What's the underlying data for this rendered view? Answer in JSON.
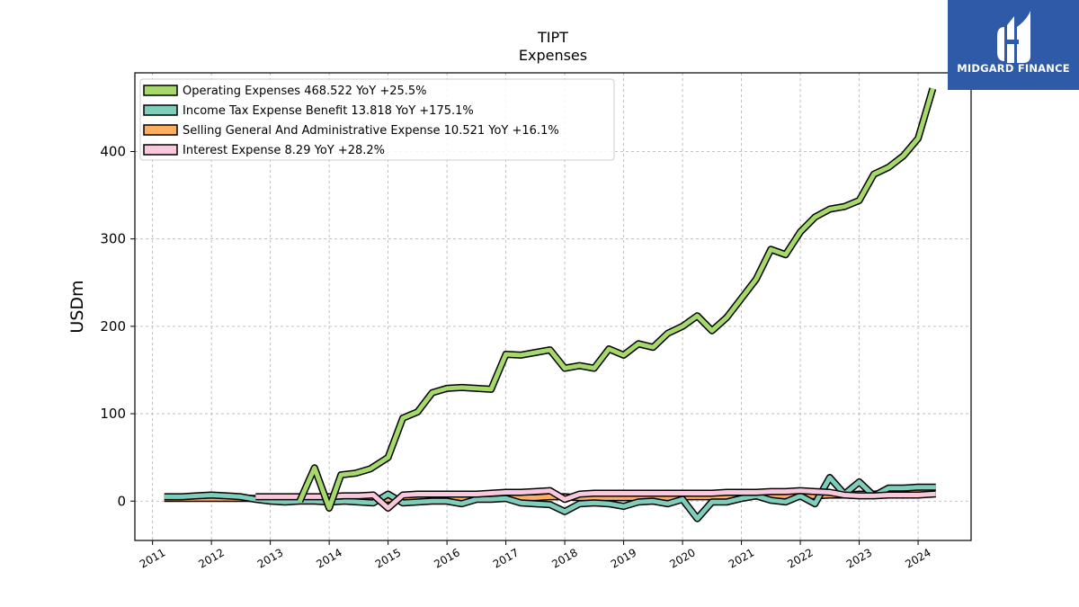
{
  "chart_data": {
    "type": "line",
    "title": "TIPT",
    "subtitle": "Expenses",
    "ylabel": "USDm",
    "xlabel": "",
    "xlim": [
      2010.7,
      2024.9
    ],
    "ylim": [
      -45,
      490
    ],
    "grid": true,
    "legend_placement": "top-left",
    "x_ticks": [
      "2011",
      "2012",
      "2013",
      "2014",
      "2015",
      "2016",
      "2017",
      "2018",
      "2019",
      "2020",
      "2021",
      "2022",
      "2023",
      "2024"
    ],
    "y_ticks": [
      0,
      100,
      200,
      300,
      400
    ],
    "series": [
      {
        "name": "Operating Expenses",
        "legend": "Operating Expenses  468.522 YoY +25.5%",
        "color": "#a6d96a",
        "x": [
          2013.5,
          2013.75,
          2014.0,
          2014.2,
          2014.45,
          2014.7,
          2015.0,
          2015.25,
          2015.5,
          2015.75,
          2016.0,
          2016.25,
          2016.5,
          2016.75,
          2017.0,
          2017.25,
          2017.5,
          2017.75,
          2018.0,
          2018.25,
          2018.5,
          2018.75,
          2019.0,
          2019.25,
          2019.5,
          2019.75,
          2020.0,
          2020.25,
          2020.5,
          2020.75,
          2021.0,
          2021.25,
          2021.5,
          2021.75,
          2022.0,
          2022.25,
          2022.5,
          2022.75,
          2023.0,
          2023.25,
          2023.5,
          2023.75,
          2024.0,
          2024.25
        ],
        "values": [
          0,
          38,
          -8,
          30,
          32,
          37,
          50,
          95,
          102,
          124,
          129,
          130,
          129,
          128,
          168,
          167,
          170,
          173,
          152,
          155,
          152,
          174,
          167,
          180,
          176,
          192,
          200,
          212,
          195,
          210,
          232,
          254,
          288,
          282,
          308,
          325,
          334,
          337,
          344,
          374,
          382,
          395,
          415,
          472
        ]
      },
      {
        "name": "Income Tax Expense Benefit",
        "legend": "Income Tax Expense Benefit  13.818 YoY +175.1%",
        "color": "#7fcdbb",
        "x": [
          2011.2,
          2011.5,
          2011.75,
          2012.0,
          2012.25,
          2012.5,
          2012.75,
          2013.0,
          2013.25,
          2013.5,
          2013.75,
          2014.0,
          2014.25,
          2014.5,
          2014.75,
          2015.0,
          2015.25,
          2015.5,
          2015.75,
          2016.0,
          2016.25,
          2016.5,
          2016.75,
          2017.0,
          2017.25,
          2017.5,
          2017.75,
          2018.0,
          2018.25,
          2018.5,
          2018.75,
          2019.0,
          2019.25,
          2019.5,
          2019.75,
          2020.0,
          2020.25,
          2020.5,
          2020.75,
          2021.0,
          2021.25,
          2021.5,
          2021.75,
          2022.0,
          2022.25,
          2022.5,
          2022.75,
          2023.0,
          2023.25,
          2023.5,
          2023.75,
          2024.0,
          2024.3
        ],
        "values": [
          5,
          5,
          6,
          7,
          6,
          5,
          2,
          0,
          -1,
          0,
          0,
          -1,
          0,
          -1,
          -2,
          8,
          -2,
          -1,
          0,
          0,
          -3,
          2,
          2,
          3,
          -2,
          -3,
          -4,
          -12,
          -3,
          -2,
          -3,
          -6,
          -1,
          0,
          -3,
          2,
          -20,
          -1,
          -1,
          3,
          6,
          1,
          -1,
          6,
          -3,
          27,
          8,
          22,
          6,
          15,
          15,
          16,
          16
        ]
      },
      {
        "name": "Selling General And Administrative Expense",
        "legend": "Selling General And Administrative Expense  10.521 YoY +16.1%",
        "color": "#fdae61",
        "x": [
          2011.2,
          2011.5,
          2011.75,
          2012.0,
          2012.25,
          2012.5,
          2012.75,
          2013.0,
          2013.25,
          2013.5,
          2013.75,
          2014.0,
          2014.25,
          2014.5,
          2014.75,
          2015.0,
          2015.25,
          2015.5,
          2015.75,
          2016.0,
          2016.25,
          2016.5,
          2016.75,
          2017.0,
          2017.25,
          2017.5,
          2017.75,
          2018.0,
          2018.25,
          2018.5,
          2018.75,
          2019.0,
          2019.25,
          2019.5,
          2019.75,
          2020.0,
          2020.25,
          2020.5,
          2020.75,
          2021.0,
          2021.25,
          2021.5,
          2021.75,
          2022.0,
          2022.25,
          2022.5,
          2022.75,
          2023.0,
          2023.25,
          2023.5,
          2023.75,
          2024.0,
          2024.3
        ],
        "values": [
          3,
          3,
          3,
          3,
          3,
          3,
          3,
          2,
          1,
          1,
          1,
          1,
          1,
          1,
          1,
          2,
          2,
          3,
          3,
          3,
          3,
          3,
          3,
          4,
          4,
          4,
          5,
          5,
          4,
          4,
          4,
          4,
          4,
          4,
          4,
          5,
          5,
          5,
          5,
          6,
          6,
          6,
          6,
          6,
          6,
          7,
          7,
          8,
          8,
          9,
          9,
          10,
          10.5
        ]
      },
      {
        "name": "Interest Expense",
        "legend": "Interest Expense  8.29 YoY +28.2%",
        "color": "#f8c8dc",
        "x": [
          2012.75,
          2013.0,
          2013.25,
          2013.5,
          2013.75,
          2014.0,
          2014.25,
          2014.5,
          2014.75,
          2015.0,
          2015.25,
          2015.5,
          2015.75,
          2016.0,
          2016.25,
          2016.5,
          2016.75,
          2017.0,
          2017.25,
          2017.5,
          2017.75,
          2018.0,
          2018.25,
          2018.5,
          2018.75,
          2019.0,
          2019.25,
          2019.5,
          2019.75,
          2020.0,
          2020.25,
          2020.5,
          2020.75,
          2021.0,
          2021.25,
          2021.5,
          2021.75,
          2022.0,
          2022.25,
          2022.5,
          2022.75,
          2023.0,
          2023.25,
          2023.5,
          2023.75,
          2024.0,
          2024.3
        ],
        "values": [
          5,
          5,
          5,
          5,
          5,
          5,
          6,
          6,
          7,
          -8,
          7,
          8,
          8,
          8,
          8,
          8,
          9,
          10,
          10,
          11,
          12,
          2,
          8,
          9,
          9,
          9,
          9,
          9,
          9,
          9,
          9,
          9,
          10,
          10,
          10,
          11,
          11,
          12,
          11,
          10,
          7,
          6,
          6,
          7,
          7,
          7,
          8.3
        ]
      }
    ]
  },
  "logo": {
    "text": "MIDGARD FINANCE",
    "color": "#2f5aa8"
  }
}
